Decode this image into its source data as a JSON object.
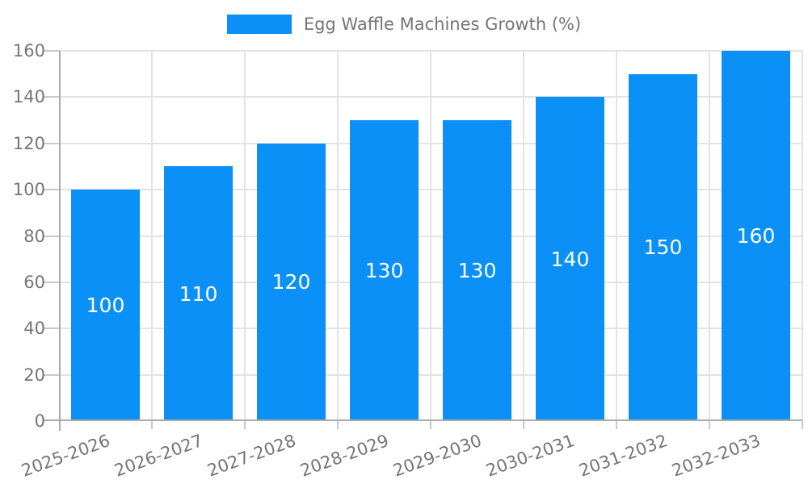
{
  "legend": {
    "label": "Egg Waffle Machines Growth (%)"
  },
  "chart_data": {
    "type": "bar",
    "title": "Egg Waffle Machines Growth (%)",
    "categories": [
      "2025-2026",
      "2026-2027",
      "2027-2028",
      "2028-2029",
      "2029-2030",
      "2030-2031",
      "2031-2032",
      "2032-2033"
    ],
    "values": [
      100,
      110,
      120,
      130,
      130,
      140,
      150,
      160
    ],
    "bar_labels": [
      "100",
      "110",
      "120",
      "130",
      "130",
      "140",
      "150",
      "160"
    ],
    "xlabel": "",
    "ylabel": "",
    "ylim": [
      0,
      160
    ],
    "ytick_step": 20,
    "yticks": [
      0,
      20,
      40,
      60,
      80,
      100,
      120,
      140,
      160
    ],
    "grid": true,
    "legend_position": "top-center",
    "legend_entries": [
      "Egg Waffle Machines Growth (%)"
    ],
    "x_label_rotation_deg": -20
  },
  "colors": {
    "background": "#ffffff",
    "bar": "#0b90f8",
    "grid_line": "#e3e3e3",
    "axis_line": "#ababab",
    "tick_mark": "#c9c9c9",
    "axis_text": "#757575",
    "legend_text": "#757575",
    "bar_label_text": "#ffffff"
  }
}
